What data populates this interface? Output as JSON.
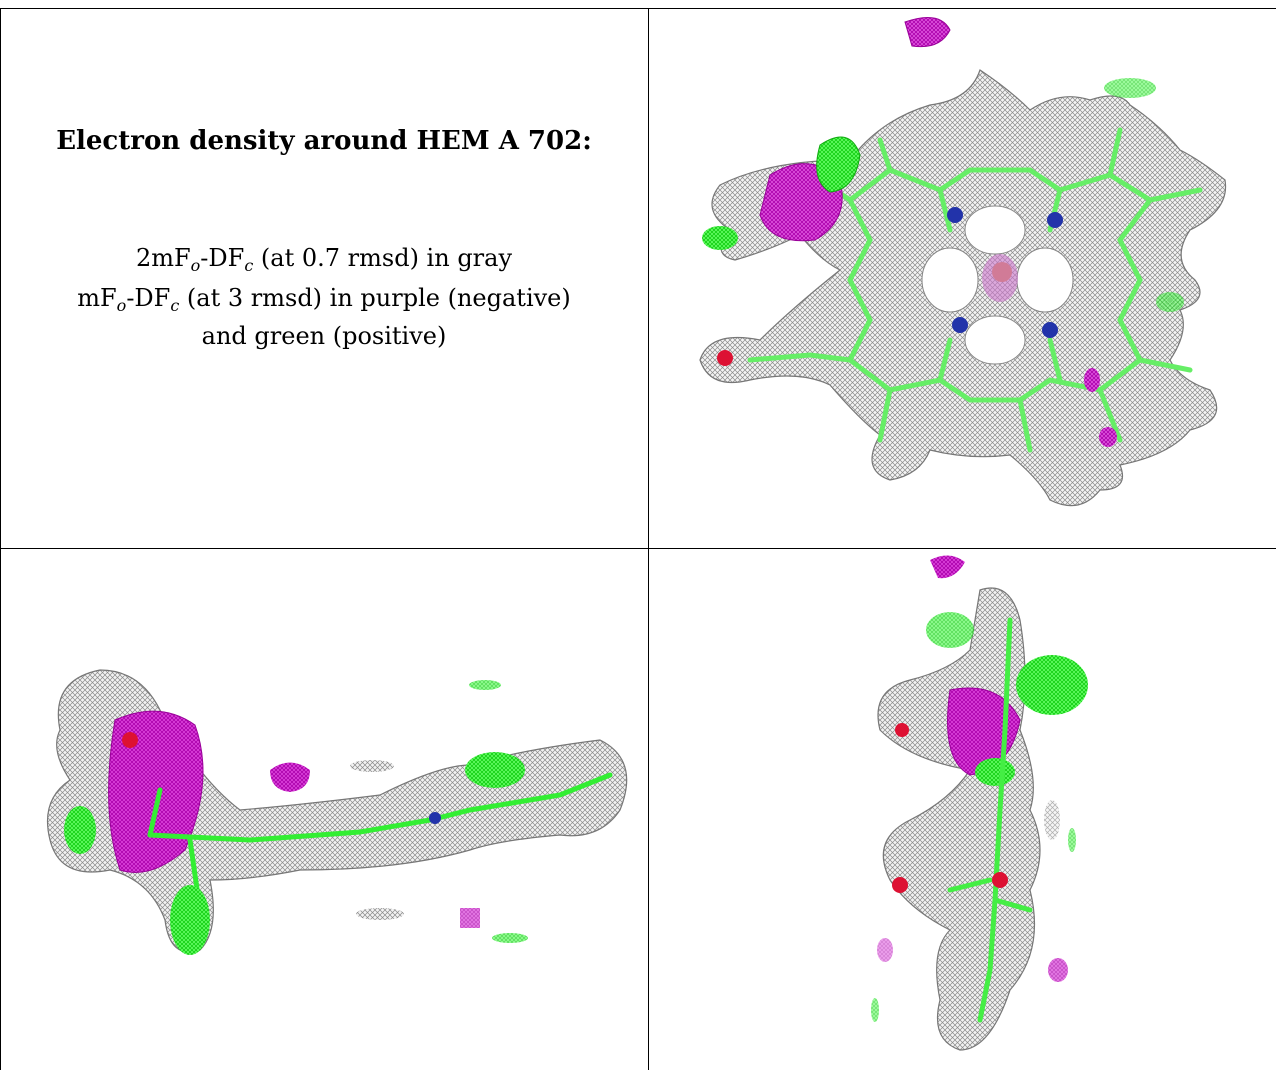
{
  "caption": {
    "title": "Electron density around HEM A 702:",
    "line1": {
      "before": "2mF",
      "sub1": "o",
      "mid": "-DF",
      "sub2": "c",
      "after": " (at 0.7 rmsd) in gray"
    },
    "line2": {
      "before": "mF",
      "sub1": "o",
      "mid": "-DF",
      "sub2": "c",
      "after": " (at 3 rmsd) in purple (negative)"
    },
    "line3": "and green (positive)"
  },
  "colors": {
    "mesh_gray": "#8a8a8a",
    "mesh_purple": "#cc00cc",
    "mesh_green": "#22ee22",
    "stick_green": "#66ee66",
    "nitrogen_blue": "#2233aa",
    "oxygen_red": "#dd1133",
    "iron_orange": "#d9824a"
  },
  "panels": [
    {
      "view": "top-view"
    },
    {
      "view": "side-view"
    },
    {
      "view": "edge-view"
    }
  ]
}
